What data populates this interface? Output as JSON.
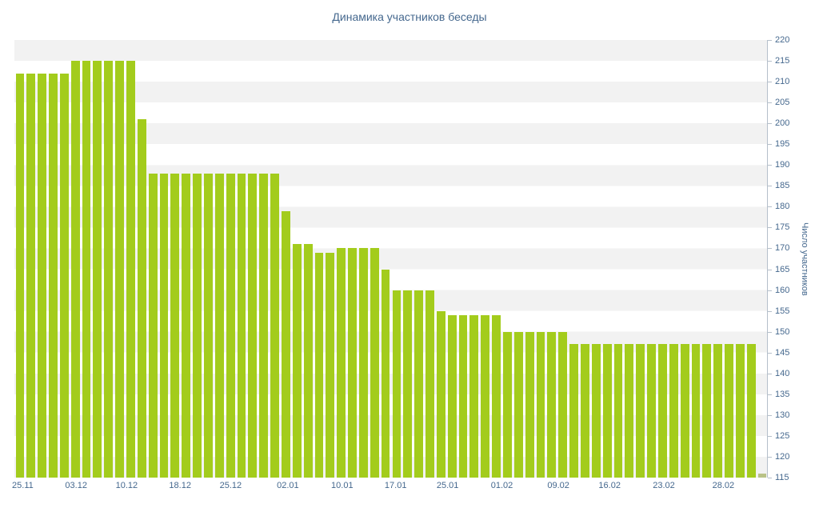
{
  "page": {
    "background": "#ffffff"
  },
  "chart_data": {
    "type": "bar",
    "title": "Динамика участников беседы",
    "xlabel": "",
    "ylabel": "Число участников",
    "ylim": [
      115,
      220
    ],
    "y_tick_step": 5,
    "y_tick_labels": [
      "220",
      "215",
      "210",
      "205",
      "200",
      "195",
      "190",
      "185",
      "180",
      "175",
      "170",
      "165",
      "160",
      "155",
      "150",
      "145",
      "140",
      "135",
      "130",
      "125",
      "120",
      "115"
    ],
    "x_ticks": [
      {
        "label": "25.11",
        "f": 0.011
      },
      {
        "label": "03.12",
        "f": 0.082
      },
      {
        "label": "10.12",
        "f": 0.149
      },
      {
        "label": "18.12",
        "f": 0.22
      },
      {
        "label": "25.12",
        "f": 0.287
      },
      {
        "label": "02.01",
        "f": 0.363
      },
      {
        "label": "10.01",
        "f": 0.435
      },
      {
        "label": "17.01",
        "f": 0.506
      },
      {
        "label": "25.01",
        "f": 0.575
      },
      {
        "label": "01.02",
        "f": 0.647
      },
      {
        "label": "09.02",
        "f": 0.722
      },
      {
        "label": "16.02",
        "f": 0.79
      },
      {
        "label": "23.02",
        "f": 0.862
      },
      {
        "label": "28.02",
        "f": 0.941
      }
    ],
    "values": [
      212,
      212,
      212,
      212,
      212,
      215,
      215,
      215,
      215,
      215,
      215,
      201,
      188,
      188,
      188,
      188,
      188,
      188,
      188,
      188,
      188,
      188,
      188,
      188,
      179,
      171,
      171,
      169,
      169,
      170,
      170,
      170,
      170,
      165,
      160,
      160,
      160,
      160,
      155,
      154,
      154,
      154,
      154,
      154,
      150,
      150,
      150,
      150,
      150,
      150,
      147,
      147,
      147,
      147,
      147,
      147,
      147,
      147,
      147,
      147,
      147,
      147,
      147,
      147,
      147,
      147,
      147,
      116
    ],
    "grid": "horizontal-striped-bands-every-5-units",
    "legend": "none",
    "colors": {
      "bar": "#a3cc1c",
      "final_bar": "#b9c287",
      "title": "#45688e",
      "axis_labels": "#45688e",
      "axis_line": "#b5bfca",
      "stripe": "#f2f2f2",
      "background": "#ffffff"
    }
  }
}
